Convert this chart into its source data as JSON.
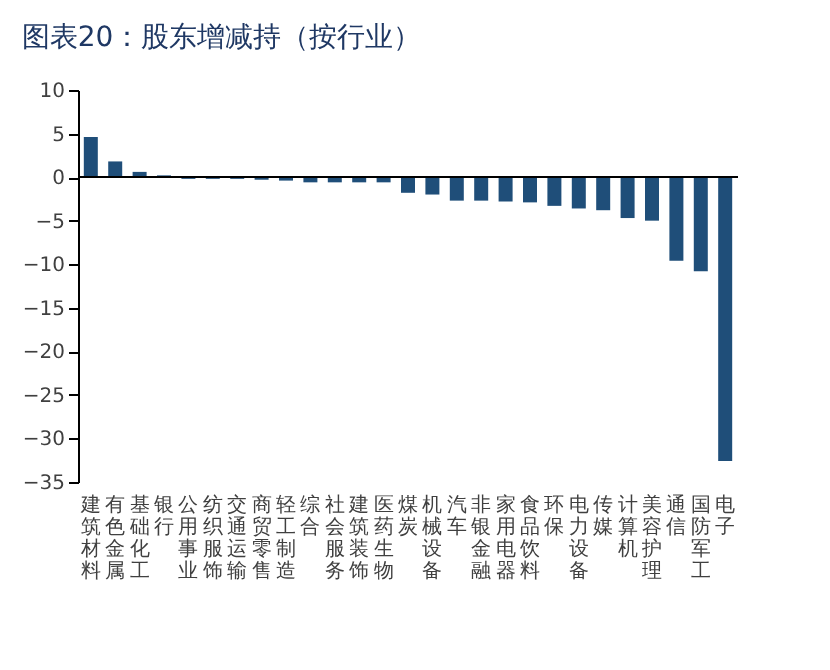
{
  "chart_data": {
    "type": "bar",
    "title": "图表20：股东增减持（按行业）",
    "categories": [
      "建筑材料",
      "有色金属",
      "基础化工",
      "银行",
      "公用事业",
      "纺织服饰",
      "交通运输",
      "商贸零售",
      "轻工制造",
      "综合",
      "社会服务",
      "建筑装饰",
      "医药生物",
      "煤炭",
      "机械设备",
      "汽车",
      "非银金融",
      "家用电器",
      "食品饮料",
      "环保",
      "电力设备",
      "传媒",
      "计算机",
      "美容护理",
      "通信",
      "国防军工",
      "电子"
    ],
    "values": [
      4.6,
      1.8,
      0.6,
      0.2,
      -0.2,
      -0.2,
      -0.2,
      -0.3,
      -0.4,
      -0.6,
      -0.6,
      -0.6,
      -0.6,
      -1.8,
      -2.0,
      -2.7,
      -2.7,
      -2.8,
      -2.9,
      -3.3,
      -3.6,
      -3.8,
      -4.7,
      -5.0,
      -9.6,
      -10.8,
      -32.6
    ],
    "color": "#1f4e79",
    "ylim": [
      -35,
      10
    ],
    "yticks": [
      -35,
      -30,
      -25,
      -20,
      -15,
      -10,
      -5,
      0,
      5,
      10
    ],
    "grid": false,
    "ref_lines": [
      {
        "axis": "y",
        "value": 0,
        "color": "#000000"
      }
    ]
  }
}
